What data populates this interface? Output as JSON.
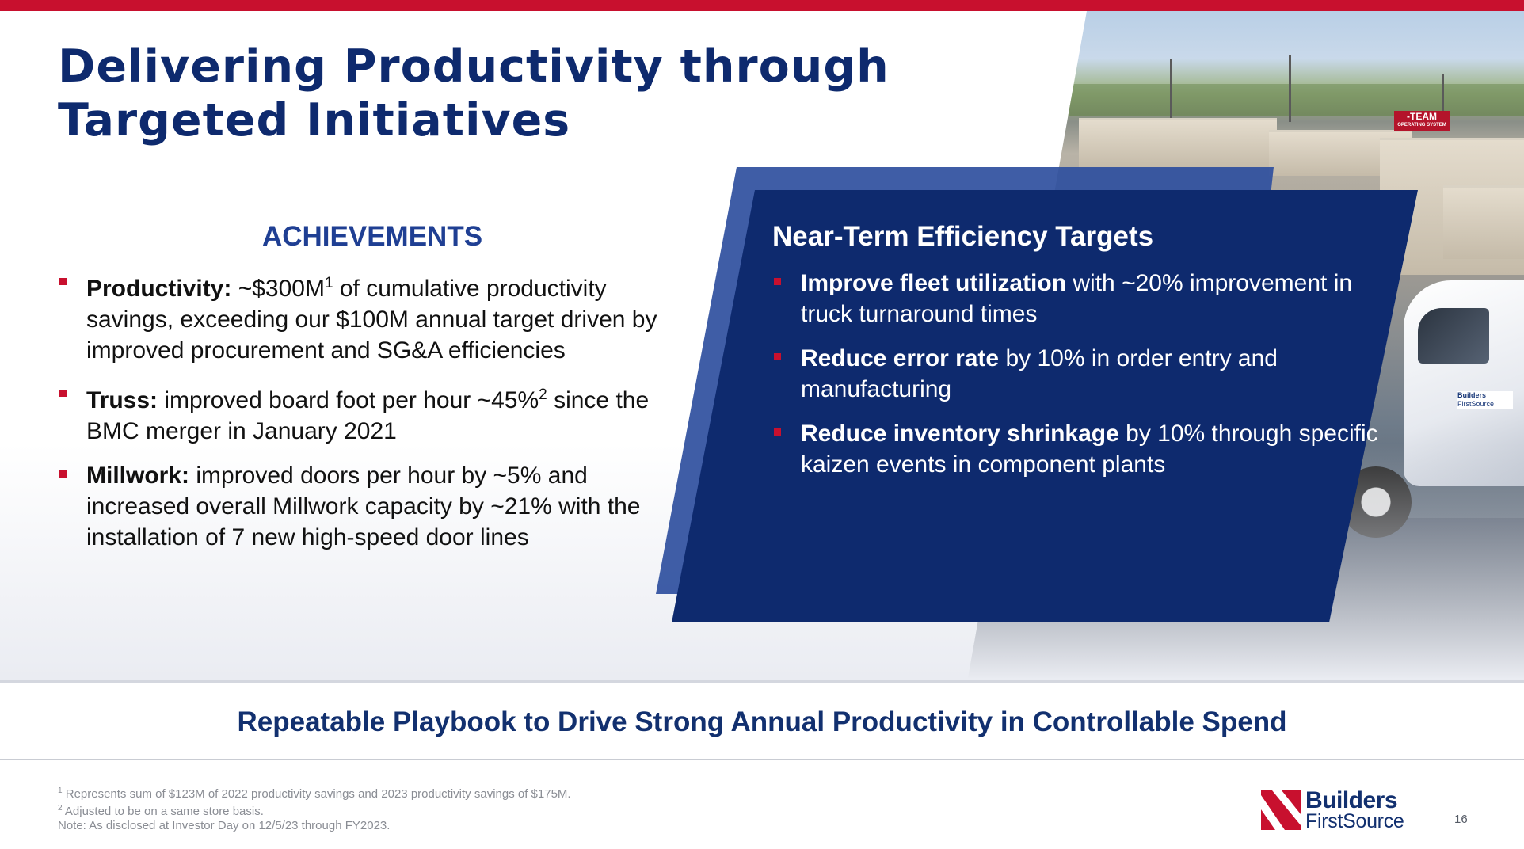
{
  "header": {
    "title_line1": "Delivering Productivity through",
    "title_line2": "Targeted Initiatives"
  },
  "achievements": {
    "heading": "ACHIEVEMENTS",
    "items": [
      {
        "label": "Productivity:",
        "pre": " ~$300M",
        "sup": "1",
        "post": " of cumulative productivity savings, exceeding our $100M annual target driven by improved procurement and SG&A efficiencies"
      },
      {
        "label": "Truss:",
        "pre": " improved board foot per hour ~45%",
        "sup": "2",
        "post": " since the BMC merger in January 2021"
      },
      {
        "label": "Millwork:",
        "text": " improved doors per hour by ~5% and increased overall Millwork capacity by ~21% with the installation of 7 new high-speed door lines"
      }
    ]
  },
  "targets": {
    "heading": "Near-Term Efficiency Targets",
    "items": [
      {
        "label": "Improve fleet utilization",
        "text": " with ~20% improvement in truck turnaround times"
      },
      {
        "label": "Reduce error rate",
        "text": " by 10% in order entry and manufacturing"
      },
      {
        "label": "Reduce inventory shrinkage",
        "text": " by 10% through specific kaizen events in component plants"
      }
    ]
  },
  "photo": {
    "badge_main": "-TEAM",
    "badge_sub": "OPERATING SYSTEM",
    "door_logo_line1": "Builders",
    "door_logo_line2": "FirstSource"
  },
  "tagline": "Repeatable Playbook to Drive Strong Annual Productivity in Controllable Spend",
  "footnotes": {
    "note1_sup": "1",
    "note1": " Represents sum of $123M of 2022 productivity savings and 2023 productivity savings of $175M.",
    "note2_sup": "2",
    "note2": " Adjusted to be on a same store basis.",
    "note3": "Note: As disclosed at Investor Day on 12/5/23 through FY2023."
  },
  "logo": {
    "line1": "Builders",
    "line2": "FirstSource"
  },
  "page_number": "16",
  "colors": {
    "brand_navy": "#0e2a6e",
    "accent_red": "#c8102e",
    "panel_blue": "#2f4f9e"
  }
}
